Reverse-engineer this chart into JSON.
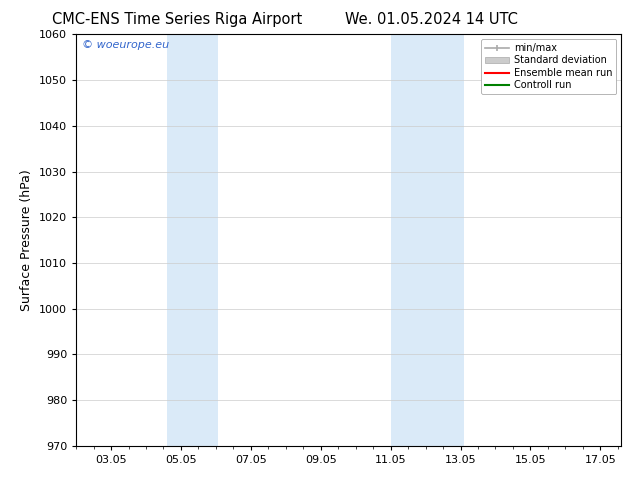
{
  "title_left": "CMC-ENS Time Series Riga Airport",
  "title_right": "We. 01.05.2024 14 UTC",
  "ylabel": "Surface Pressure (hPa)",
  "ylim": [
    970,
    1060
  ],
  "yticks": [
    970,
    980,
    990,
    1000,
    1010,
    1020,
    1030,
    1040,
    1050,
    1060
  ],
  "xlim": [
    2.0,
    17.6
  ],
  "xtick_labels": [
    "03.05",
    "05.05",
    "07.05",
    "09.05",
    "11.05",
    "13.05",
    "15.05",
    "17.05"
  ],
  "xtick_positions": [
    3.0,
    5.0,
    7.0,
    9.0,
    11.0,
    13.0,
    15.0,
    17.0
  ],
  "shaded_regions": [
    {
      "x_start": 4.6,
      "x_end": 6.05,
      "color": "#daeaf8"
    },
    {
      "x_start": 11.0,
      "x_end": 13.1,
      "color": "#daeaf8"
    }
  ],
  "watermark_text": "© woeurope.eu",
  "watermark_color": "#3366cc",
  "legend_items": [
    {
      "label": "min/max",
      "type": "minmax"
    },
    {
      "label": "Standard deviation",
      "type": "stddev"
    },
    {
      "label": "Ensemble mean run",
      "type": "line",
      "color": "red"
    },
    {
      "label": "Controll run",
      "type": "line",
      "color": "green"
    }
  ],
  "bg_color": "#ffffff",
  "grid_color": "#cccccc",
  "title_fontsize": 10.5,
  "tick_fontsize": 8,
  "ylabel_fontsize": 9,
  "watermark_fontsize": 8
}
